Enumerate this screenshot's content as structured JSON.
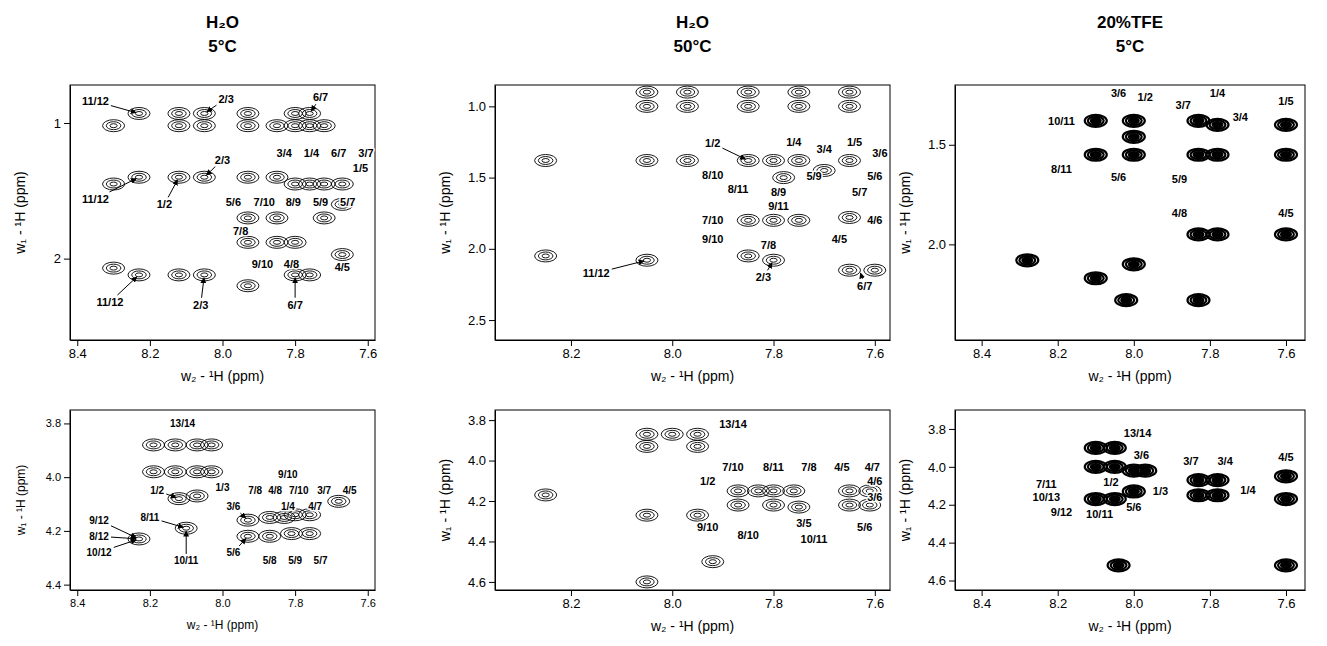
{
  "chart_data": [
    {
      "type": "contour",
      "title": [
        "H₂O",
        "5°C"
      ],
      "x_label": "w₂ - ¹H (ppm)",
      "y_label": "w₁ - ¹H (ppm)",
      "marker": "contour",
      "xlim": [
        8.42,
        7.58
      ],
      "ylim": [
        0.72,
        2.6
      ],
      "xticks": [
        8.4,
        8.2,
        {
          "value": 8,
          "label": "8.0"
        },
        7.8,
        7.6
      ],
      "yticks": [
        1,
        2
      ],
      "peaks": {
        "x": [
          8.3,
          8.3,
          8.3,
          8.23,
          8.23,
          8.23,
          8.12,
          8.12,
          8.12,
          8.12,
          8.05,
          8.05,
          8.05,
          8.05,
          7.93,
          7.93,
          7.93,
          7.93,
          7.93,
          7.93,
          7.85,
          7.85,
          7.85,
          7.85,
          7.8,
          7.8,
          7.8,
          7.8,
          7.8,
          7.76,
          7.76,
          7.76,
          7.76,
          7.72,
          7.72,
          7.72,
          7.67,
          7.67,
          7.67
        ],
        "y": [
          1.02,
          1.45,
          2.07,
          0.93,
          1.4,
          2.12,
          0.93,
          1.02,
          1.4,
          2.12,
          0.93,
          1.02,
          1.4,
          2.12,
          0.93,
          1.02,
          1.4,
          1.7,
          1.88,
          2.2,
          1.02,
          1.4,
          1.7,
          1.88,
          0.93,
          1.02,
          1.45,
          1.88,
          2.12,
          0.93,
          1.02,
          1.45,
          2.12,
          1.02,
          1.45,
          1.7,
          1.45,
          1.6,
          1.97
        ]
      },
      "annotations": [
        {
          "text": "11/12",
          "x": 8.35,
          "y": 0.84,
          "target": [
            8.23,
            0.93
          ]
        },
        {
          "text": "11/12",
          "x": 8.35,
          "y": 1.56,
          "target": [
            8.23,
            1.4
          ]
        },
        {
          "text": "11/12",
          "x": 8.31,
          "y": 2.32,
          "target": [
            8.23,
            2.12
          ]
        },
        {
          "text": "2/3",
          "x": 7.99,
          "y": 0.82,
          "target": [
            8.05,
            0.93
          ]
        },
        {
          "text": "2/3",
          "x": 8.0,
          "y": 1.27,
          "target": [
            8.05,
            1.4
          ]
        },
        {
          "text": "2/3",
          "x": 8.06,
          "y": 2.34,
          "target": [
            8.05,
            2.12
          ]
        },
        {
          "text": "1/2",
          "x": 8.16,
          "y": 1.6,
          "target": [
            8.12,
            1.4
          ]
        },
        {
          "text": "6/7",
          "x": 7.73,
          "y": 0.81,
          "target": [
            7.76,
            0.93
          ]
        },
        {
          "text": "3/4",
          "x": 7.83,
          "y": 1.22
        },
        {
          "text": "1/4",
          "x": 7.755,
          "y": 1.22
        },
        {
          "text": "6/7",
          "x": 7.68,
          "y": 1.22
        },
        {
          "text": "3/7",
          "x": 7.605,
          "y": 1.22
        },
        {
          "text": "1/5",
          "x": 7.62,
          "y": 1.33
        },
        {
          "text": "5/6",
          "x": 7.97,
          "y": 1.58
        },
        {
          "text": "7/10",
          "x": 7.885,
          "y": 1.58
        },
        {
          "text": "8/9",
          "x": 7.805,
          "y": 1.58
        },
        {
          "text": "5/9",
          "x": 7.73,
          "y": 1.58
        },
        {
          "text": "5/7",
          "x": 7.655,
          "y": 1.58
        },
        {
          "text": "7/8",
          "x": 7.95,
          "y": 1.8
        },
        {
          "text": "9/10",
          "x": 7.89,
          "y": 2.04
        },
        {
          "text": "4/8",
          "x": 7.81,
          "y": 2.04
        },
        {
          "text": "4/5",
          "x": 7.67,
          "y": 2.06
        },
        {
          "text": "6/7",
          "x": 7.8,
          "y": 2.34,
          "target": [
            7.8,
            2.12
          ]
        }
      ]
    },
    {
      "type": "contour",
      "x_label": "w₂ - ¹H (ppm)",
      "y_label": "w₁ - ¹H (ppm)",
      "marker": "contour",
      "xlim": [
        8.42,
        7.58
      ],
      "ylim": [
        3.75,
        4.42
      ],
      "xticks": [
        8.4,
        8.2,
        {
          "value": 8,
          "label": "8.0"
        },
        7.8,
        7.6
      ],
      "yticks": [
        3.8,
        {
          "value": 4,
          "label": "4.0"
        },
        4.2,
        4.4
      ],
      "peaks": {
        "x": [
          8.19,
          8.13,
          8.07,
          8.03,
          8.19,
          8.13,
          8.07,
          8.03,
          8.23,
          8.12,
          8.07,
          8.1,
          7.93,
          7.93,
          7.87,
          7.83,
          7.8,
          7.76,
          7.68,
          7.87,
          7.81,
          7.76
        ],
        "y": [
          3.88,
          3.88,
          3.88,
          3.88,
          3.98,
          3.98,
          3.98,
          3.98,
          4.23,
          4.08,
          4.07,
          4.19,
          4.16,
          4.22,
          4.15,
          4.15,
          4.14,
          4.14,
          4.09,
          4.22,
          4.21,
          4.21
        ]
      },
      "annotations": [
        {
          "text": "13/14",
          "x": 8.11,
          "y": 3.8
        },
        {
          "text": "9/12",
          "x": 8.34,
          "y": 4.16,
          "target": [
            8.23,
            4.23
          ]
        },
        {
          "text": "8/12",
          "x": 8.34,
          "y": 4.22,
          "target": [
            8.23,
            4.23
          ]
        },
        {
          "text": "10/12",
          "x": 8.34,
          "y": 4.28,
          "target": [
            8.23,
            4.23
          ]
        },
        {
          "text": "1/2",
          "x": 8.18,
          "y": 4.05,
          "target": [
            8.12,
            4.08
          ]
        },
        {
          "text": "8/11",
          "x": 8.2,
          "y": 4.15,
          "target": [
            8.1,
            4.19
          ]
        },
        {
          "text": "10/11",
          "x": 8.1,
          "y": 4.31,
          "target": [
            8.1,
            4.19
          ]
        },
        {
          "text": "1/3",
          "x": 8.0,
          "y": 4.04
        },
        {
          "text": "3/6",
          "x": 7.97,
          "y": 4.11,
          "target": [
            7.93,
            4.16
          ]
        },
        {
          "text": "5/6",
          "x": 7.97,
          "y": 4.28,
          "target": [
            7.93,
            4.22
          ]
        },
        {
          "text": "9/10",
          "x": 7.82,
          "y": 3.99
        },
        {
          "text": "7/8",
          "x": 7.91,
          "y": 4.05
        },
        {
          "text": "4/8",
          "x": 7.855,
          "y": 4.05
        },
        {
          "text": "7/10",
          "x": 7.79,
          "y": 4.05
        },
        {
          "text": "3/7",
          "x": 7.72,
          "y": 4.05
        },
        {
          "text": "4/5",
          "x": 7.65,
          "y": 4.05
        },
        {
          "text": "1/4",
          "x": 7.82,
          "y": 4.11
        },
        {
          "text": "4/7",
          "x": 7.745,
          "y": 4.11
        },
        {
          "text": "5/8",
          "x": 7.87,
          "y": 4.31
        },
        {
          "text": "5/9",
          "x": 7.8,
          "y": 4.31
        },
        {
          "text": "5/7",
          "x": 7.73,
          "y": 4.31
        }
      ]
    },
    {
      "type": "contour",
      "title": [
        "H₂O",
        "50°C"
      ],
      "x_label": "w₂ - ¹H (ppm)",
      "y_label": "w₁ - ¹H (ppm)",
      "marker": "contour",
      "xlim": [
        8.35,
        7.57
      ],
      "ylim": [
        0.85,
        2.64
      ],
      "xticks": [
        8.2,
        {
          "value": 8,
          "label": "8.0"
        },
        7.8,
        7.6
      ],
      "yticks": [
        {
          "value": 1,
          "label": "1.0"
        },
        1.5,
        {
          "value": 2,
          "label": "2.0"
        },
        2.5
      ],
      "peaks": {
        "x": [
          8.25,
          8.25,
          8.05,
          8.05,
          8.05,
          8.05,
          7.97,
          7.97,
          7.97,
          7.85,
          7.85,
          7.85,
          7.85,
          7.85,
          7.8,
          7.8,
          7.8,
          7.75,
          7.75,
          7.75,
          7.75,
          7.65,
          7.65,
          7.65,
          7.65,
          7.65,
          7.6,
          7.7,
          7.78
        ],
        "y": [
          1.38,
          2.05,
          0.9,
          1.0,
          1.38,
          2.08,
          0.9,
          1.0,
          1.38,
          0.9,
          1.0,
          1.38,
          1.8,
          2.05,
          1.38,
          1.8,
          2.08,
          0.9,
          1.0,
          1.38,
          1.8,
          0.9,
          1.0,
          1.38,
          1.78,
          2.15,
          2.15,
          1.45,
          1.5
        ]
      },
      "annotations": [
        {
          "text": "1/2",
          "x": 7.92,
          "y": 1.26,
          "target": [
            7.85,
            1.38
          ]
        },
        {
          "text": "1/4",
          "x": 7.76,
          "y": 1.25
        },
        {
          "text": "3/4",
          "x": 7.7,
          "y": 1.3
        },
        {
          "text": "1/5",
          "x": 7.64,
          "y": 1.25
        },
        {
          "text": "3/6",
          "x": 7.59,
          "y": 1.33
        },
        {
          "text": "8/10",
          "x": 7.92,
          "y": 1.48
        },
        {
          "text": "5/9",
          "x": 7.72,
          "y": 1.49
        },
        {
          "text": "5/6",
          "x": 7.6,
          "y": 1.49
        },
        {
          "text": "8/11",
          "x": 7.87,
          "y": 1.58
        },
        {
          "text": "8/9",
          "x": 7.79,
          "y": 1.6
        },
        {
          "text": "5/7",
          "x": 7.63,
          "y": 1.6
        },
        {
          "text": "9/11",
          "x": 7.79,
          "y": 1.7
        },
        {
          "text": "7/10",
          "x": 7.92,
          "y": 1.8
        },
        {
          "text": "4/6",
          "x": 7.6,
          "y": 1.8
        },
        {
          "text": "9/10",
          "x": 7.92,
          "y": 1.93
        },
        {
          "text": "4/5",
          "x": 7.67,
          "y": 1.93
        },
        {
          "text": "7/8",
          "x": 7.81,
          "y": 1.97
        },
        {
          "text": "2/3",
          "x": 7.82,
          "y": 2.2,
          "target": [
            7.8,
            2.08
          ]
        },
        {
          "text": "6/7",
          "x": 7.62,
          "y": 2.26,
          "target": [
            7.63,
            2.15
          ]
        },
        {
          "text": "11/12",
          "x": 8.15,
          "y": 2.17,
          "target": [
            8.05,
            2.08
          ]
        }
      ]
    },
    {
      "type": "contour",
      "x_label": "w₂ - ¹H (ppm)",
      "y_label": "w₁ - ¹H (ppm)",
      "marker": "contour",
      "xlim": [
        8.35,
        7.57
      ],
      "ylim": [
        3.75,
        4.64
      ],
      "xticks": [
        8.2,
        {
          "value": 8,
          "label": "8.0"
        },
        7.8,
        7.6
      ],
      "yticks": [
        3.8,
        {
          "value": 4,
          "label": "4.0"
        },
        4.2,
        4.4,
        4.6
      ],
      "peaks": {
        "x": [
          8.25,
          8.05,
          8.0,
          7.95,
          8.05,
          7.95,
          7.92,
          7.87,
          7.83,
          7.8,
          7.76,
          7.87,
          7.8,
          7.75,
          7.65,
          7.61,
          7.65,
          7.61,
          8.05,
          8.05,
          7.95
        ],
        "y": [
          4.17,
          3.87,
          3.87,
          3.87,
          3.93,
          3.93,
          4.5,
          4.15,
          4.15,
          4.15,
          4.15,
          4.22,
          4.22,
          4.23,
          4.15,
          4.15,
          4.22,
          4.22,
          4.27,
          4.6,
          4.27
        ]
      },
      "annotations": [
        {
          "text": "13/14",
          "x": 7.88,
          "y": 3.82
        },
        {
          "text": "1/2",
          "x": 7.93,
          "y": 4.1
        },
        {
          "text": "7/10",
          "x": 7.88,
          "y": 4.03
        },
        {
          "text": "8/11",
          "x": 7.8,
          "y": 4.03
        },
        {
          "text": "7/8",
          "x": 7.73,
          "y": 4.03
        },
        {
          "text": "4/5",
          "x": 7.665,
          "y": 4.03
        },
        {
          "text": "4/7",
          "x": 7.605,
          "y": 4.03
        },
        {
          "text": "4/6",
          "x": 7.6,
          "y": 4.1
        },
        {
          "text": "3/6",
          "x": 7.6,
          "y": 4.18
        },
        {
          "text": "9/10",
          "x": 7.93,
          "y": 4.33
        },
        {
          "text": "8/10",
          "x": 7.85,
          "y": 4.37
        },
        {
          "text": "3/5",
          "x": 7.74,
          "y": 4.31
        },
        {
          "text": "10/11",
          "x": 7.72,
          "y": 4.39
        },
        {
          "text": "5/6",
          "x": 7.62,
          "y": 4.33
        }
      ]
    },
    {
      "type": "contour",
      "title": [
        "20%TFE",
        "5°C"
      ],
      "x_label": "w₂ - ¹H (ppm)",
      "y_label": "w₁ - ¹H (ppm)",
      "marker": "filled",
      "xlim": [
        8.47,
        7.55
      ],
      "ylim": [
        1.2,
        2.48
      ],
      "xticks": [
        8.4,
        8.2,
        {
          "value": 8,
          "label": "8.0"
        },
        7.8,
        7.6
      ],
      "yticks": [
        1.5,
        {
          "value": 2,
          "label": "2.0"
        }
      ],
      "peaks": {
        "x": [
          8.1,
          8.1,
          8.1,
          8.0,
          8.0,
          8.0,
          8.0,
          8.02,
          7.83,
          7.83,
          7.83,
          7.83,
          7.78,
          7.78,
          7.78,
          7.6,
          7.6,
          7.6,
          8.28
        ],
        "y": [
          1.38,
          1.55,
          2.17,
          1.38,
          1.46,
          1.55,
          2.1,
          2.28,
          1.38,
          1.55,
          1.95,
          2.28,
          1.4,
          1.55,
          1.95,
          1.4,
          1.55,
          1.95,
          2.08
        ]
      },
      "annotations": [
        {
          "text": "3/6",
          "x": 8.04,
          "y": 1.24
        },
        {
          "text": "1/2",
          "x": 7.97,
          "y": 1.26
        },
        {
          "text": "10/11",
          "x": 8.19,
          "y": 1.38
        },
        {
          "text": "8/11",
          "x": 8.19,
          "y": 1.62
        },
        {
          "text": "5/6",
          "x": 8.04,
          "y": 1.66
        },
        {
          "text": "3/7",
          "x": 7.87,
          "y": 1.3
        },
        {
          "text": "1/4",
          "x": 7.78,
          "y": 1.24
        },
        {
          "text": "3/4",
          "x": 7.72,
          "y": 1.36
        },
        {
          "text": "1/5",
          "x": 7.6,
          "y": 1.28
        },
        {
          "text": "5/9",
          "x": 7.88,
          "y": 1.67
        },
        {
          "text": "4/8",
          "x": 7.88,
          "y": 1.84
        },
        {
          "text": "4/5",
          "x": 7.6,
          "y": 1.84
        }
      ]
    },
    {
      "type": "contour",
      "x_label": "w₂ - ¹H (ppm)",
      "y_label": "w₁ - ¹H (ppm)",
      "marker": "filled",
      "xlim": [
        8.47,
        7.55
      ],
      "ylim": [
        3.7,
        4.65
      ],
      "xticks": [
        8.4,
        8.2,
        {
          "value": 8,
          "label": "8.0"
        },
        7.8,
        7.6
      ],
      "yticks": [
        3.8,
        {
          "value": 4,
          "label": "4.0"
        },
        4.2,
        4.4,
        4.6
      ],
      "peaks": {
        "x": [
          8.1,
          8.05,
          8.1,
          8.05,
          8.1,
          8.05,
          8.0,
          7.97,
          8.0,
          8.04,
          7.83,
          7.78,
          7.83,
          7.78,
          7.6,
          7.6,
          7.6
        ],
        "y": [
          3.9,
          3.9,
          4.0,
          4.0,
          4.17,
          4.17,
          4.02,
          4.02,
          4.13,
          4.52,
          4.07,
          4.07,
          4.15,
          4.15,
          4.05,
          4.17,
          4.52
        ]
      },
      "annotations": [
        {
          "text": "13/14",
          "x": 7.99,
          "y": 3.82
        },
        {
          "text": "3/6",
          "x": 7.98,
          "y": 3.94
        },
        {
          "text": "3/7",
          "x": 7.85,
          "y": 3.97
        },
        {
          "text": "3/4",
          "x": 7.76,
          "y": 3.97
        },
        {
          "text": "4/5",
          "x": 7.6,
          "y": 3.95
        },
        {
          "text": "7/11",
          "x": 8.23,
          "y": 4.09
        },
        {
          "text": "10/13",
          "x": 8.23,
          "y": 4.16
        },
        {
          "text": "9/12",
          "x": 8.19,
          "y": 4.24
        },
        {
          "text": "1/2",
          "x": 8.06,
          "y": 4.08
        },
        {
          "text": "1/3",
          "x": 7.93,
          "y": 4.13
        },
        {
          "text": "1/4",
          "x": 7.7,
          "y": 4.12
        },
        {
          "text": "10/11",
          "x": 8.09,
          "y": 4.25
        },
        {
          "text": "5/6",
          "x": 8.0,
          "y": 4.21
        }
      ]
    }
  ]
}
